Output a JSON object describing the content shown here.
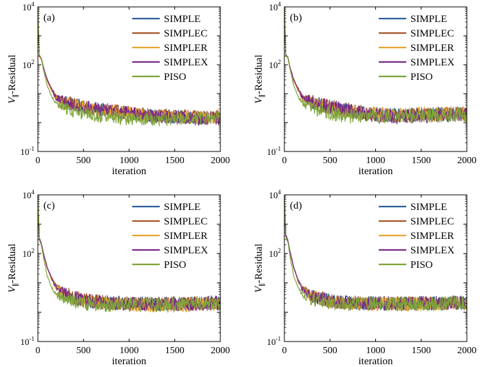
{
  "figure": {
    "legend_position": "top-right",
    "colors": {
      "SIMPLE": "#2f5f9a",
      "SIMPLEC": "#a8552a",
      "SIMPLER": "#e5a633",
      "SIMPLEX": "#7b2a8a",
      "PISO": "#7ea43a"
    }
  },
  "chart_data": [
    {
      "panel": "(a)",
      "type": "line",
      "xlabel": "iteration",
      "ylabel": "V∥-Residual",
      "ylabel_main": "V",
      "ylabel_sub": "∥",
      "ylabel_rest": "-Residual",
      "xlim": [
        0,
        2000
      ],
      "ylim": [
        0.1,
        10000
      ],
      "yscale": "log",
      "xticks": [
        0,
        500,
        1000,
        1500,
        2000
      ],
      "yticks": [
        {
          "base": "10",
          "exp": "-1"
        },
        {
          "base": "10",
          "exp": "2"
        },
        {
          "base": "10",
          "exp": "4"
        }
      ],
      "ytick_values": [
        0.1,
        100,
        10000
      ],
      "noise_level": 0.23,
      "series": [
        {
          "name": "SIMPLE",
          "x": [
            0,
            15,
            40,
            60,
            100,
            150,
            200,
            300,
            500,
            700,
            900,
            1100,
            1300,
            1500,
            1700,
            1850,
            2000
          ],
          "y": [
            10000,
            200,
            150,
            80,
            30,
            14,
            7,
            5,
            3.5,
            2.8,
            2.3,
            1.9,
            1.7,
            1.6,
            1.5,
            1.4,
            1.5
          ]
        },
        {
          "name": "SIMPLEC",
          "x": [
            0,
            15,
            40,
            60,
            100,
            150,
            200,
            300,
            500,
            700,
            900,
            1100,
            1300,
            1500,
            1700,
            1850,
            2000
          ],
          "y": [
            10000,
            220,
            160,
            85,
            32,
            15,
            7.5,
            5.2,
            3.6,
            2.9,
            2.4,
            2.0,
            1.8,
            1.7,
            1.6,
            1.5,
            1.6
          ]
        },
        {
          "name": "SIMPLER",
          "x": [
            0,
            15,
            40,
            60,
            100,
            150,
            200,
            300,
            500,
            700,
            900,
            1100,
            1300,
            1500,
            1700,
            1850,
            2000
          ],
          "y": [
            10000,
            190,
            140,
            75,
            28,
            13,
            6.5,
            4.8,
            3.4,
            2.7,
            2.2,
            1.9,
            1.7,
            1.6,
            1.5,
            1.4,
            1.5
          ]
        },
        {
          "name": "SIMPLEX",
          "x": [
            0,
            15,
            40,
            60,
            100,
            150,
            200,
            300,
            500,
            700,
            900,
            1100,
            1300,
            1500,
            1700,
            1850,
            2000
          ],
          "y": [
            10000,
            210,
            155,
            82,
            31,
            14.5,
            7.2,
            5.0,
            3.5,
            2.8,
            2.3,
            1.9,
            1.6,
            1.5,
            1.4,
            1.3,
            1.4
          ]
        },
        {
          "name": "PISO",
          "x": [
            0,
            15,
            40,
            60,
            100,
            150,
            200,
            300,
            500,
            700,
            900,
            1100,
            1300,
            1500,
            1700,
            1850,
            2000
          ],
          "y": [
            10000,
            200,
            160,
            70,
            20,
            8,
            4.5,
            3.0,
            2.0,
            1.6,
            1.4,
            1.3,
            1.3,
            1.3,
            1.4,
            1.4,
            1.5
          ]
        }
      ]
    },
    {
      "panel": "(b)",
      "type": "line",
      "xlabel": "iteration",
      "ylabel": "V∥-Residual",
      "ylabel_main": "V",
      "ylabel_sub": "∥",
      "ylabel_rest": "-Residual",
      "xlim": [
        0,
        2000
      ],
      "ylim": [
        0.1,
        10000
      ],
      "yscale": "log",
      "xticks": [
        0,
        500,
        1000,
        1500,
        2000
      ],
      "yticks": [
        {
          "base": "10",
          "exp": "-1"
        },
        {
          "base": "10",
          "exp": "2"
        },
        {
          "base": "10",
          "exp": "4"
        }
      ],
      "ytick_values": [
        0.1,
        100,
        10000
      ],
      "noise_level": 0.25,
      "series": [
        {
          "name": "SIMPLE",
          "x": [
            0,
            15,
            40,
            60,
            100,
            150,
            200,
            300,
            500,
            700,
            900,
            1100,
            1300,
            1500,
            1700,
            1850,
            2000
          ],
          "y": [
            10000,
            220,
            170,
            85,
            30,
            14,
            7,
            5,
            3.4,
            2.6,
            2.0,
            1.8,
            1.8,
            1.9,
            2.0,
            2.0,
            2.0
          ]
        },
        {
          "name": "SIMPLEC",
          "x": [
            0,
            15,
            40,
            60,
            100,
            150,
            200,
            300,
            500,
            700,
            900,
            1100,
            1300,
            1500,
            1700,
            1850,
            2000
          ],
          "y": [
            10000,
            230,
            175,
            88,
            32,
            15,
            7.5,
            5.3,
            3.5,
            2.7,
            2.0,
            1.7,
            1.7,
            1.8,
            1.9,
            1.9,
            1.9
          ]
        },
        {
          "name": "SIMPLER",
          "x": [
            0,
            15,
            40,
            60,
            100,
            150,
            200,
            300,
            500,
            700,
            900,
            1100,
            1300,
            1500,
            1700,
            1850,
            2000
          ],
          "y": [
            10000,
            210,
            160,
            80,
            29,
            13,
            6.8,
            4.9,
            3.3,
            2.6,
            2.1,
            1.9,
            1.9,
            2.0,
            2.0,
            2.1,
            2.0
          ]
        },
        {
          "name": "SIMPLEX",
          "x": [
            0,
            15,
            40,
            60,
            100,
            150,
            200,
            300,
            500,
            700,
            900,
            1100,
            1300,
            1500,
            1700,
            1850,
            2000
          ],
          "y": [
            10000,
            225,
            170,
            86,
            31,
            14.5,
            7.2,
            5.1,
            3.4,
            2.6,
            1.9,
            1.6,
            1.6,
            1.7,
            1.8,
            1.9,
            1.9
          ]
        },
        {
          "name": "PISO",
          "x": [
            0,
            15,
            40,
            60,
            100,
            150,
            200,
            300,
            500,
            700,
            900,
            1100,
            1300,
            1500,
            1700,
            1850,
            2000
          ],
          "y": [
            10000,
            210,
            170,
            75,
            20,
            8,
            4.5,
            3.2,
            2.1,
            1.7,
            1.6,
            1.6,
            1.6,
            1.7,
            1.8,
            1.8,
            1.9
          ]
        }
      ]
    },
    {
      "panel": "(c)",
      "type": "line",
      "xlabel": "iteration",
      "ylabel": "V∥-Residual",
      "ylabel_main": "V",
      "ylabel_sub": "∥",
      "ylabel_rest": "-Residual",
      "xlim": [
        0,
        2000
      ],
      "ylim": [
        0.1,
        10000
      ],
      "yscale": "log",
      "xticks": [
        0,
        500,
        1000,
        1500,
        2000
      ],
      "yticks": [
        {
          "base": "10",
          "exp": "-1"
        },
        {
          "base": "10",
          "exp": "2"
        },
        {
          "base": "10",
          "exp": "4"
        }
      ],
      "ytick_values": [
        0.1,
        100,
        10000
      ],
      "noise_level": 0.24,
      "series": [
        {
          "name": "SIMPLE",
          "x": [
            0,
            15,
            40,
            60,
            100,
            150,
            200,
            300,
            500,
            700,
            900,
            1100,
            1300,
            1500,
            1700,
            1850,
            2000
          ],
          "y": [
            10000,
            350,
            200,
            100,
            35,
            14,
            7,
            4,
            2.5,
            2.2,
            2.1,
            2.0,
            2.0,
            2.0,
            2.0,
            2.1,
            2.1
          ]
        },
        {
          "name": "SIMPLEC",
          "x": [
            0,
            15,
            40,
            60,
            100,
            150,
            200,
            300,
            500,
            700,
            900,
            1100,
            1300,
            1500,
            1700,
            1850,
            2000
          ],
          "y": [
            10000,
            360,
            205,
            105,
            36,
            15,
            7.5,
            4.2,
            2.6,
            2.2,
            2.0,
            1.9,
            1.9,
            1.9,
            2.0,
            2.0,
            2.0
          ]
        },
        {
          "name": "SIMPLER",
          "x": [
            0,
            15,
            40,
            60,
            100,
            150,
            200,
            300,
            500,
            700,
            900,
            1100,
            1300,
            1500,
            1700,
            1850,
            2000
          ],
          "y": [
            10000,
            340,
            195,
            98,
            34,
            13,
            6.8,
            3.9,
            2.4,
            2.0,
            1.9,
            1.8,
            1.7,
            1.7,
            1.8,
            1.9,
            1.9
          ]
        },
        {
          "name": "SIMPLEX",
          "x": [
            0,
            15,
            40,
            60,
            100,
            150,
            200,
            300,
            500,
            700,
            900,
            1100,
            1300,
            1500,
            1700,
            1850,
            2000
          ],
          "y": [
            10000,
            355,
            200,
            102,
            35,
            14.5,
            7.2,
            4.1,
            2.5,
            2.1,
            2.0,
            1.9,
            1.9,
            1.9,
            1.9,
            2.0,
            2.0
          ]
        },
        {
          "name": "PISO",
          "x": [
            0,
            15,
            40,
            60,
            100,
            150,
            200,
            300,
            500,
            700,
            900,
            1100,
            1300,
            1500,
            1700,
            1850,
            2000
          ],
          "y": [
            10000,
            300,
            180,
            80,
            18,
            7,
            4,
            2.8,
            2.0,
            1.8,
            1.8,
            1.8,
            1.8,
            1.9,
            1.9,
            2.0,
            2.0
          ]
        }
      ]
    },
    {
      "panel": "(d)",
      "type": "line",
      "xlabel": "iteration",
      "ylabel": "V∥-Residual",
      "ylabel_main": "V",
      "ylabel_sub": "∥",
      "ylabel_rest": "-Residual",
      "xlim": [
        0,
        2000
      ],
      "ylim": [
        0.1,
        10000
      ],
      "yscale": "log",
      "xticks": [
        0,
        500,
        1000,
        1500,
        2000
      ],
      "yticks": [
        {
          "base": "10",
          "exp": "-1"
        },
        {
          "base": "10",
          "exp": "2"
        },
        {
          "base": "10",
          "exp": "4"
        }
      ],
      "ytick_values": [
        0.1,
        100,
        10000
      ],
      "noise_level": 0.24,
      "series": [
        {
          "name": "SIMPLE",
          "x": [
            0,
            15,
            40,
            60,
            100,
            150,
            200,
            300,
            500,
            700,
            900,
            1100,
            1300,
            1500,
            1700,
            1850,
            2000
          ],
          "y": [
            10000,
            450,
            260,
            120,
            35,
            12,
            6,
            3.5,
            2.4,
            2.1,
            2.0,
            2.0,
            2.0,
            2.0,
            2.0,
            2.1,
            2.1
          ]
        },
        {
          "name": "SIMPLEC",
          "x": [
            0,
            15,
            40,
            60,
            100,
            150,
            200,
            300,
            500,
            700,
            900,
            1100,
            1300,
            1500,
            1700,
            1850,
            2000
          ],
          "y": [
            10000,
            460,
            265,
            125,
            36,
            12.5,
            6.3,
            3.6,
            2.5,
            2.1,
            2.0,
            2.0,
            2.0,
            2.0,
            2.0,
            2.0,
            2.0
          ]
        },
        {
          "name": "SIMPLER",
          "x": [
            0,
            15,
            40,
            60,
            100,
            150,
            200,
            300,
            500,
            700,
            900,
            1100,
            1300,
            1500,
            1700,
            1850,
            2000
          ],
          "y": [
            10000,
            440,
            255,
            118,
            34,
            11.5,
            5.8,
            3.4,
            2.3,
            2.0,
            1.9,
            1.9,
            1.9,
            1.9,
            1.9,
            2.0,
            2.0
          ]
        },
        {
          "name": "SIMPLEX",
          "x": [
            0,
            15,
            40,
            60,
            100,
            150,
            200,
            300,
            500,
            700,
            900,
            1100,
            1300,
            1500,
            1700,
            1850,
            2000
          ],
          "y": [
            10000,
            455,
            262,
            122,
            35.5,
            12.2,
            6.1,
            3.5,
            2.4,
            2.1,
            2.0,
            2.0,
            2.0,
            2.0,
            2.0,
            2.0,
            2.1
          ]
        },
        {
          "name": "PISO",
          "x": [
            0,
            15,
            40,
            60,
            100,
            150,
            200,
            300,
            500,
            700,
            900,
            1100,
            1300,
            1500,
            1700,
            1850,
            2000
          ],
          "y": [
            10000,
            380,
            220,
            90,
            18,
            7,
            3.8,
            2.7,
            2.0,
            1.9,
            1.9,
            1.9,
            1.9,
            1.9,
            1.9,
            2.0,
            2.0
          ]
        }
      ]
    }
  ]
}
